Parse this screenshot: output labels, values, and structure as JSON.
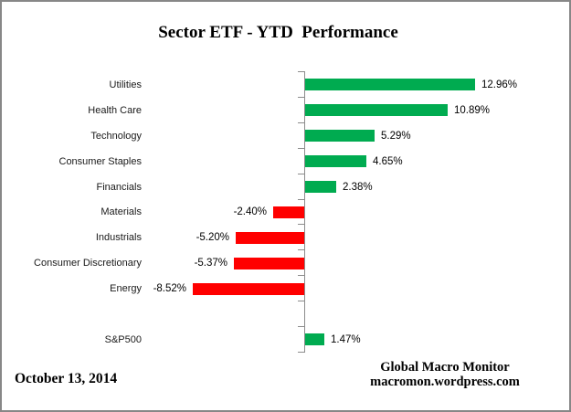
{
  "figure": {
    "title": "Sector ETF - YTD  Performance",
    "date_note": "October 13, 2014",
    "credit": {
      "line1": "Global Macro Monitor",
      "line2": "macromon.wordpress.com"
    }
  },
  "chart_data": {
    "type": "bar",
    "orientation": "horizontal",
    "title": "Sector ETF - YTD  Performance",
    "categories": [
      "Utilities",
      "Health Care",
      "Technology",
      "Consumer Staples",
      "Financials",
      "Materials",
      "Industrials",
      "Consumer Discretionary",
      "Energy",
      "S&P500"
    ],
    "values": [
      12.96,
      10.89,
      5.29,
      4.65,
      2.38,
      -2.4,
      -5.2,
      -5.37,
      -8.52,
      1.47
    ],
    "value_labels": [
      "12.96%",
      "10.89%",
      "5.29%",
      "4.65%",
      "2.38%",
      "-2.40%",
      "-5.20%",
      "-5.37%",
      "-8.52%",
      "1.47%"
    ],
    "separator_before_category": "S&P500",
    "positive_color": "#00AB50",
    "negative_color": "#FF0000",
    "axis_color": "#8C8C8C",
    "xlim": [
      -10.5,
      14.5
    ],
    "grid": false,
    "legend": false,
    "value_format": "percent"
  }
}
